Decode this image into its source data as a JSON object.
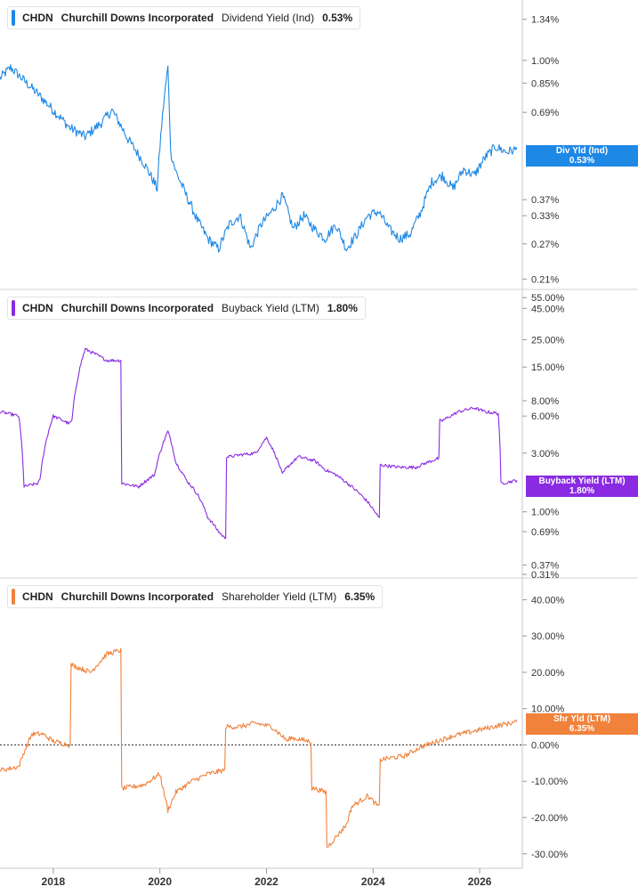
{
  "colors": {
    "div": "#1e88e5",
    "buyback": "#8a2be2",
    "shr": "#f0823c"
  },
  "x_ticks": [
    "2018",
    "2020",
    "2022",
    "2024",
    "2026"
  ],
  "panels": [
    {
      "legend": {
        "ticker": "CHDN",
        "company": "Churchill Downs Incorporated",
        "metric": "Dividend Yield (Ind)",
        "value": "0.53%"
      },
      "flag": {
        "label": "Div Yld (Ind)",
        "value": "0.53%"
      },
      "y_ticks": [
        "1.34%",
        "1.00%",
        "0.85%",
        "0.69%",
        "0.37%",
        "0.33%",
        "0.27%",
        "0.21%"
      ]
    },
    {
      "legend": {
        "ticker": "CHDN",
        "company": "Churchill Downs Incorporated",
        "metric": "Buyback Yield (LTM)",
        "value": "1.80%"
      },
      "flag": {
        "label": "Buyback Yield (LTM)",
        "value": "1.80%"
      },
      "y_ticks": [
        "55.00%",
        "45.00%",
        "25.00%",
        "15.00%",
        "8.00%",
        "6.00%",
        "3.00%",
        "1.00%",
        "0.69%",
        "0.37%",
        "0.31%"
      ]
    },
    {
      "legend": {
        "ticker": "CHDN",
        "company": "Churchill Downs Incorporated",
        "metric": "Shareholder Yield (LTM)",
        "value": "6.35%"
      },
      "flag": {
        "label": "Shr Yld (LTM)",
        "value": "6.35%"
      },
      "y_ticks": [
        "40.00%",
        "30.00%",
        "20.00%",
        "10.00%",
        "0.00%",
        "-10.00%",
        "-20.00%",
        "-30.00%"
      ]
    }
  ],
  "chart_data": [
    {
      "type": "line",
      "series": [
        {
          "name": "Dividend Yield (Ind)",
          "x": [
            2017.0,
            2017.2,
            2017.5,
            2017.8,
            2018.0,
            2018.3,
            2018.6,
            2018.9,
            2019.1,
            2019.4,
            2019.7,
            2019.95,
            2020.15,
            2020.2,
            2020.3,
            2020.5,
            2020.7,
            2020.9,
            2021.1,
            2021.3,
            2021.5,
            2021.7,
            2021.9,
            2022.1,
            2022.3,
            2022.5,
            2022.7,
            2022.9,
            2023.1,
            2023.3,
            2023.5,
            2023.7,
            2023.9,
            2024.1,
            2024.3,
            2024.5,
            2024.7,
            2024.9,
            2025.1,
            2025.3,
            2025.5,
            2025.7,
            2025.9,
            2026.1,
            2026.3,
            2026.5,
            2026.7
          ],
          "values": [
            0.88,
            0.95,
            0.85,
            0.76,
            0.7,
            0.62,
            0.58,
            0.64,
            0.7,
            0.57,
            0.48,
            0.4,
            0.95,
            0.52,
            0.45,
            0.38,
            0.32,
            0.28,
            0.26,
            0.31,
            0.33,
            0.26,
            0.31,
            0.34,
            0.38,
            0.3,
            0.33,
            0.3,
            0.28,
            0.31,
            0.26,
            0.29,
            0.33,
            0.34,
            0.3,
            0.28,
            0.29,
            0.34,
            0.42,
            0.44,
            0.4,
            0.46,
            0.44,
            0.5,
            0.54,
            0.52,
            0.53
          ]
        }
      ],
      "ylim": [
        0.2,
        1.5
      ],
      "scale": "log",
      "xlim": [
        2017.0,
        2026.8
      ]
    },
    {
      "type": "line",
      "series": [
        {
          "name": "Buyback Yield (LTM)",
          "x": [
            2017.0,
            2017.35,
            2017.45,
            2017.7,
            2017.75,
            2018.0,
            2018.3,
            2018.35,
            2018.6,
            2019.0,
            2019.25,
            2019.3,
            2019.6,
            2019.9,
            2020.15,
            2020.3,
            2020.5,
            2020.7,
            2020.9,
            2021.1,
            2021.2,
            2021.3,
            2021.5,
            2021.8,
            2022.0,
            2022.3,
            2022.35,
            2022.6,
            2022.9,
            2023.1,
            2023.3,
            2023.6,
            2023.9,
            2024.1,
            2024.15,
            2024.5,
            2024.8,
            2025.0,
            2025.2,
            2025.3,
            2025.6,
            2025.9,
            2026.1,
            2026.35,
            2026.4,
            2026.7
          ],
          "values": [
            6.5,
            6.0,
            1.6,
            1.7,
            1.8,
            6.0,
            5.2,
            5.5,
            21,
            17,
            17,
            1.7,
            1.6,
            2.0,
            4.5,
            2.5,
            1.8,
            1.4,
            0.9,
            0.69,
            0.62,
            2.8,
            2.9,
            3.0,
            4.0,
            2.0,
            2.2,
            2.8,
            2.6,
            2.2,
            2.0,
            1.6,
            1.2,
            0.9,
            2.4,
            2.3,
            2.3,
            2.5,
            2.7,
            5.5,
            6.5,
            7.0,
            6.5,
            6.3,
            1.7,
            1.8
          ]
        }
      ],
      "ylim": [
        0.31,
        60
      ],
      "scale": "log",
      "xlim": [
        2017.0,
        2026.8
      ]
    },
    {
      "type": "line",
      "series": [
        {
          "name": "Shareholder Yield (LTM)",
          "x": [
            2017.0,
            2017.35,
            2017.45,
            2017.6,
            2017.8,
            2018.0,
            2018.3,
            2018.35,
            2018.7,
            2019.0,
            2019.25,
            2019.3,
            2019.7,
            2020.0,
            2020.15,
            2020.3,
            2020.6,
            2020.9,
            2021.2,
            2021.25,
            2021.5,
            2021.8,
            2022.1,
            2022.4,
            2022.45,
            2022.8,
            2022.9,
            2023.1,
            2023.15,
            2023.5,
            2023.6,
            2023.9,
            2024.1,
            2024.15,
            2024.6,
            2024.9,
            2025.2,
            2025.5,
            2025.8,
            2026.1,
            2026.4,
            2026.7
          ],
          "values": [
            -7,
            -6,
            -2,
            3,
            3,
            1,
            0,
            22,
            20,
            25,
            26,
            -12,
            -11,
            -8,
            -18,
            -13,
            -10,
            -8,
            -7,
            5,
            5,
            6,
            5,
            1,
            2,
            1,
            -12,
            -13,
            -28,
            -22,
            -17,
            -14,
            -17,
            -4,
            -3,
            -0.5,
            1,
            2.5,
            3.5,
            4.5,
            5.5,
            6.35
          ]
        }
      ],
      "ylim": [
        -33,
        45
      ],
      "scale": "linear",
      "xlim": [
        2017.0,
        2026.8
      ]
    }
  ]
}
